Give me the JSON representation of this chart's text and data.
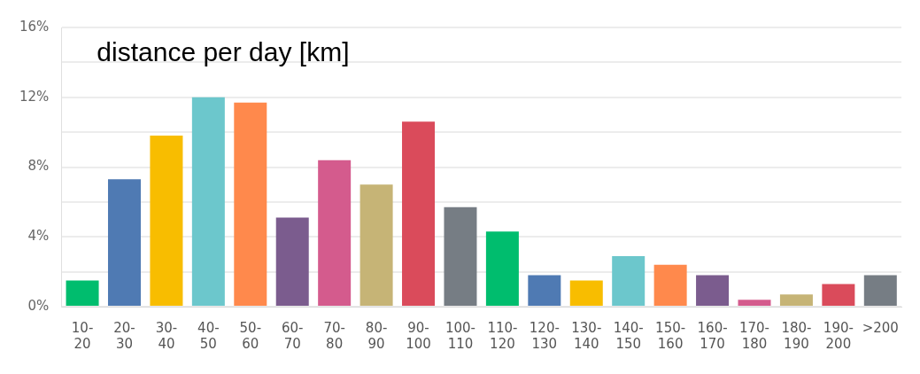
{
  "chart_data": {
    "type": "bar",
    "title": "distance per day [km]",
    "categories": [
      "10-20",
      "20-30",
      "30-40",
      "40-50",
      "50-60",
      "60-70",
      "70-80",
      "80-90",
      "90-100",
      "100-110",
      "110-120",
      "120-130",
      "130-140",
      "140-150",
      "150-160",
      "160-170",
      "170-180",
      "180-190",
      "190-200",
      ">200"
    ],
    "values": [
      1.5,
      7.3,
      9.8,
      12.0,
      11.7,
      5.1,
      8.4,
      7.0,
      10.6,
      5.7,
      4.3,
      1.8,
      1.5,
      2.9,
      2.4,
      1.8,
      0.4,
      0.7,
      1.3,
      1.8
    ],
    "colors": [
      "#00bd6e",
      "#4f7ab3",
      "#f8bd00",
      "#6cc7cc",
      "#ff894c",
      "#7b5c8e",
      "#d45b8d",
      "#c6b476",
      "#da4b5b",
      "#767d84",
      "#00bd6e",
      "#4f7ab3",
      "#f8bd00",
      "#6cc7cc",
      "#ff894c",
      "#7b5c8e",
      "#d45b8d",
      "#c6b476",
      "#da4b5b",
      "#767d84"
    ],
    "ylim": [
      0,
      16
    ],
    "yticks": [
      {
        "value": 0,
        "label": "0%"
      },
      {
        "value": 2,
        "label": null
      },
      {
        "value": 4,
        "label": "4%"
      },
      {
        "value": 6,
        "label": null
      },
      {
        "value": 8,
        "label": "8%"
      },
      {
        "value": 10,
        "label": null
      },
      {
        "value": 12,
        "label": "12%"
      },
      {
        "value": 14,
        "label": null
      },
      {
        "value": 16,
        "label": "16%"
      }
    ],
    "grid": "y",
    "legend": false
  }
}
